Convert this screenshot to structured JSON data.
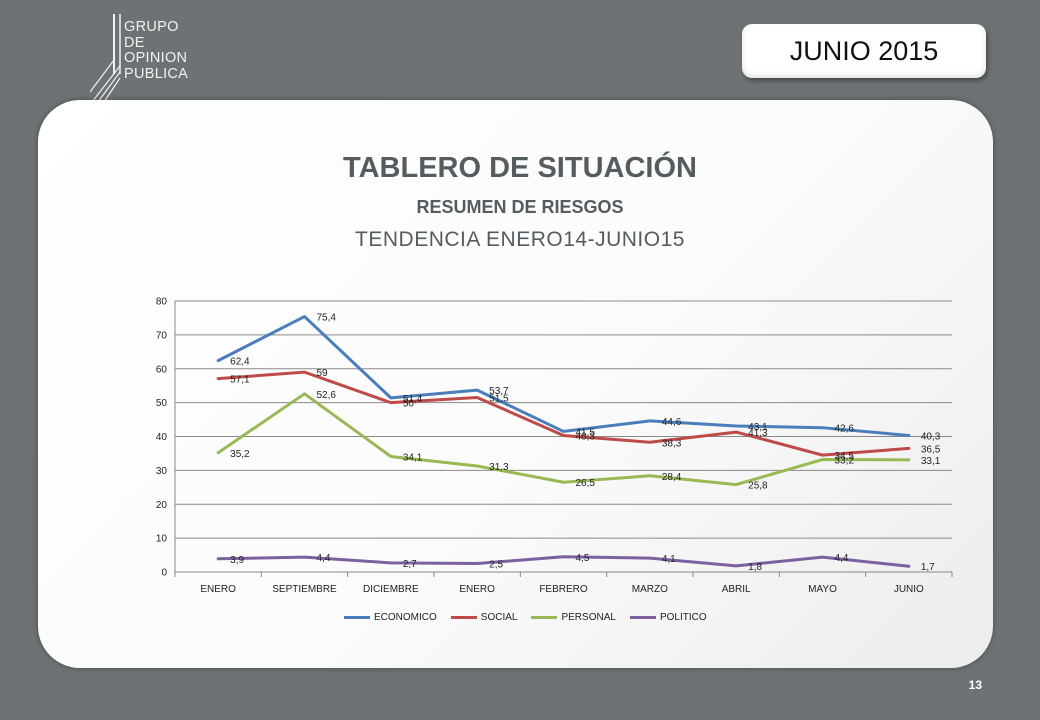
{
  "logo": {
    "lines": [
      "GRUPO",
      "DE",
      "OPINION",
      "PUBLICA"
    ]
  },
  "month_badge": "JUNIO 2015",
  "page_number": "13",
  "header": {
    "title": "TABLERO DE SITUACIÓN",
    "subtitle": "RESUMEN DE RIESGOS",
    "period": "TENDENCIA ENERO14-JUNIO15"
  },
  "chart_data": {
    "type": "line",
    "categories": [
      "ENERO",
      "SEPTIEMBRE",
      "DICIEMBRE",
      "ENERO",
      "FEBRERO",
      "MARZO",
      "ABRIL",
      "MAYO",
      "JUNIO"
    ],
    "ylim": [
      0,
      80
    ],
    "yticks": [
      0,
      10,
      20,
      30,
      40,
      50,
      60,
      70,
      80
    ],
    "grid": true,
    "legend": "bottom",
    "series": [
      {
        "name": "ECONOMICO",
        "color": "#4a7ebb",
        "values": [
          62.4,
          75.4,
          51.4,
          53.7,
          41.5,
          44.6,
          43.1,
          42.6,
          40.3
        ],
        "labels": [
          "62,4",
          "75,4",
          "51,4",
          "53,7",
          "41,5",
          "44,6",
          "43,1",
          "42,6",
          "40,3"
        ]
      },
      {
        "name": "SOCIAL",
        "color": "#be4b48",
        "values": [
          57.1,
          59,
          50,
          51.5,
          40.3,
          38.3,
          41.3,
          34.5,
          36.5
        ],
        "labels": [
          "57,1",
          "59",
          "50",
          "51,5",
          "40,3",
          "38,3",
          "41,3",
          "34,5",
          "36,5"
        ]
      },
      {
        "name": "PERSONAL",
        "color": "#98b954",
        "values": [
          35.2,
          52.6,
          34.1,
          31.3,
          26.5,
          28.4,
          25.8,
          33.2,
          33.1
        ],
        "labels": [
          "35,2",
          "52,6",
          "34,1",
          "31,3",
          "26,5",
          "28,4",
          "25,8",
          "33,2",
          "33,1"
        ]
      },
      {
        "name": "POLITICO",
        "color": "#7d60a0",
        "values": [
          3.9,
          4.4,
          2.7,
          2.5,
          4.5,
          4.1,
          1.8,
          4.4,
          1.7
        ],
        "labels": [
          "3,9",
          "4,4",
          "2,7",
          "2,5",
          "4,5",
          "4,1",
          "1,8",
          "4,4",
          "1,7"
        ]
      }
    ]
  }
}
